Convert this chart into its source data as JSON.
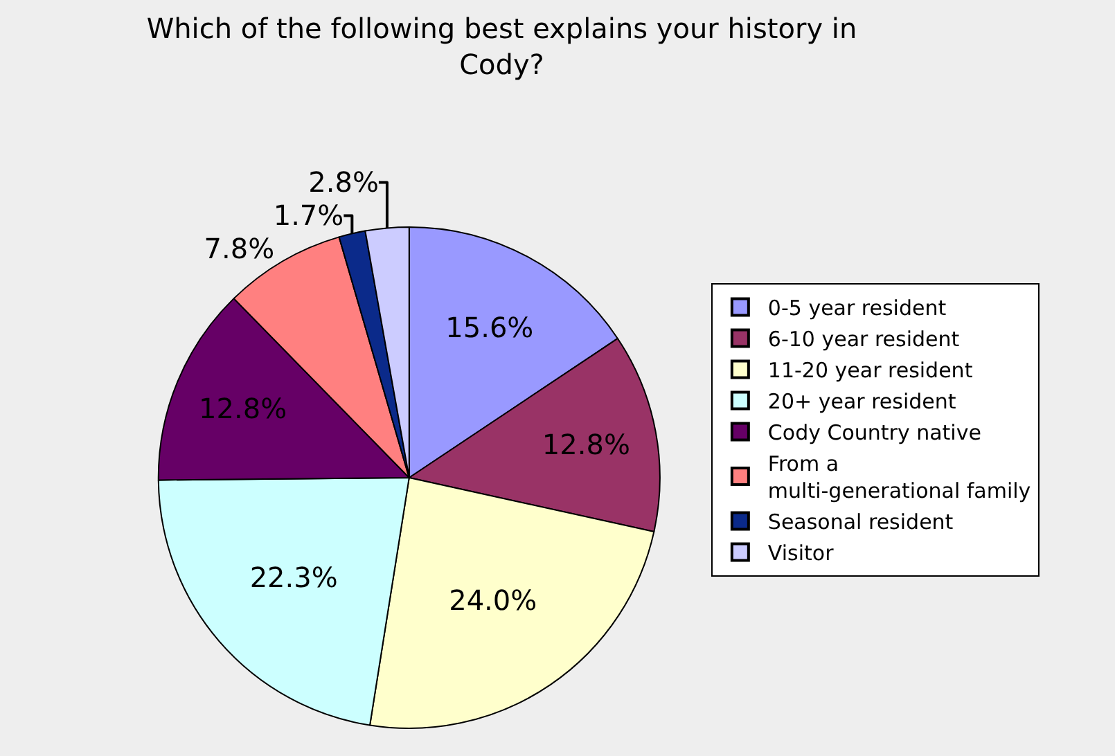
{
  "chart_data": {
    "type": "pie",
    "title": "Which of the following best explains your history in Cody?",
    "categories": [
      "0-5 year resident",
      "6-10 year resident",
      "11-20 year resident",
      "20+ year resident",
      "Cody Country native",
      "From a multi-generational family",
      "Seasonal resident",
      "Visitor"
    ],
    "values": [
      15.6,
      12.8,
      24.0,
      22.3,
      12.8,
      7.8,
      1.7,
      2.8
    ],
    "colors": [
      "#9999ff",
      "#993366",
      "#ffffcc",
      "#ccffff",
      "#660066",
      "#ff8080",
      "#0b2a8a",
      "#ccccff"
    ],
    "value_labels": [
      "15.6%",
      "12.8%",
      "24.0%",
      "22.3%",
      "12.8%",
      "7.8%",
      "1.7%",
      "2.8%"
    ],
    "legend": "right"
  }
}
